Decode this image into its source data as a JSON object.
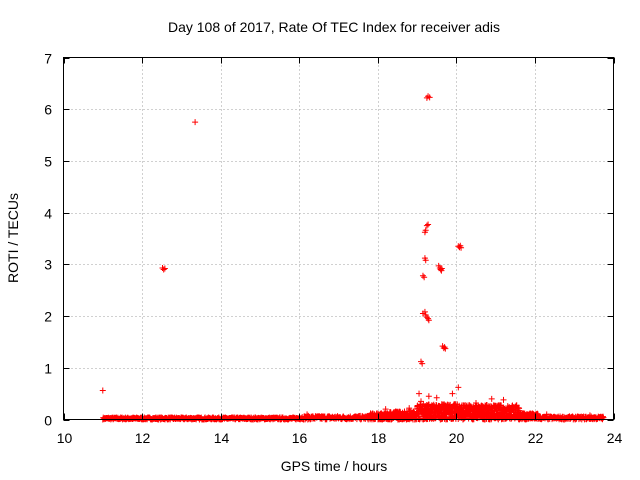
{
  "chart_data": {
    "type": "scatter",
    "title": "Day 108 of 2017, Rate Of TEC Index for receiver adis",
    "xlabel": "GPS time / hours",
    "ylabel": "ROTI / TECUs",
    "xlim": [
      10,
      24
    ],
    "ylim": [
      0,
      7
    ],
    "xticks": [
      "10",
      "12",
      "14",
      "16",
      "18",
      "20",
      "22",
      "24"
    ],
    "yticks": [
      "0",
      "1",
      "2",
      "3",
      "4",
      "5",
      "6",
      "7"
    ],
    "grid": true,
    "marker": "+",
    "color": "#ff0000",
    "series": [
      {
        "name": "ROTI",
        "points": [
          [
            11.0,
            0.56
          ],
          [
            13.35,
            5.75
          ],
          [
            12.52,
            2.93
          ],
          [
            12.55,
            2.9
          ],
          [
            12.58,
            2.92
          ],
          [
            19.1,
            1.12
          ],
          [
            19.13,
            1.08
          ],
          [
            19.15,
            2.05
          ],
          [
            19.2,
            2.08
          ],
          [
            19.22,
            2.02
          ],
          [
            19.25,
            1.98
          ],
          [
            19.28,
            1.95
          ],
          [
            19.3,
            1.92
          ],
          [
            19.15,
            2.78
          ],
          [
            19.18,
            2.75
          ],
          [
            19.2,
            3.12
          ],
          [
            19.22,
            3.08
          ],
          [
            19.2,
            3.62
          ],
          [
            19.22,
            3.66
          ],
          [
            19.25,
            3.75
          ],
          [
            19.28,
            3.77
          ],
          [
            19.25,
            6.22
          ],
          [
            19.28,
            6.25
          ],
          [
            19.32,
            6.23
          ],
          [
            19.55,
            2.97
          ],
          [
            19.58,
            2.93
          ],
          [
            19.6,
            2.9
          ],
          [
            19.62,
            2.88
          ],
          [
            19.63,
            2.92
          ],
          [
            19.65,
            1.42
          ],
          [
            19.68,
            1.38
          ],
          [
            19.7,
            1.4
          ],
          [
            19.72,
            1.37
          ],
          [
            20.05,
            3.35
          ],
          [
            20.08,
            3.33
          ],
          [
            20.1,
            3.36
          ],
          [
            20.12,
            3.32
          ],
          [
            19.05,
            0.5
          ],
          [
            19.1,
            0.35
          ],
          [
            19.3,
            0.45
          ],
          [
            19.5,
            0.42
          ],
          [
            19.9,
            0.5
          ],
          [
            20.05,
            0.62
          ],
          [
            20.5,
            0.32
          ],
          [
            20.9,
            0.4
          ],
          [
            21.2,
            0.38
          ],
          [
            21.5,
            0.25
          ],
          [
            16.2,
            0.1
          ],
          [
            18.2,
            0.2
          ],
          [
            18.5,
            0.15
          ],
          [
            18.8,
            0.22
          ],
          [
            22.3,
            0.1
          ],
          [
            23.4,
            0.08
          ],
          [
            23.7,
            0.05
          ]
        ]
      }
    ]
  }
}
